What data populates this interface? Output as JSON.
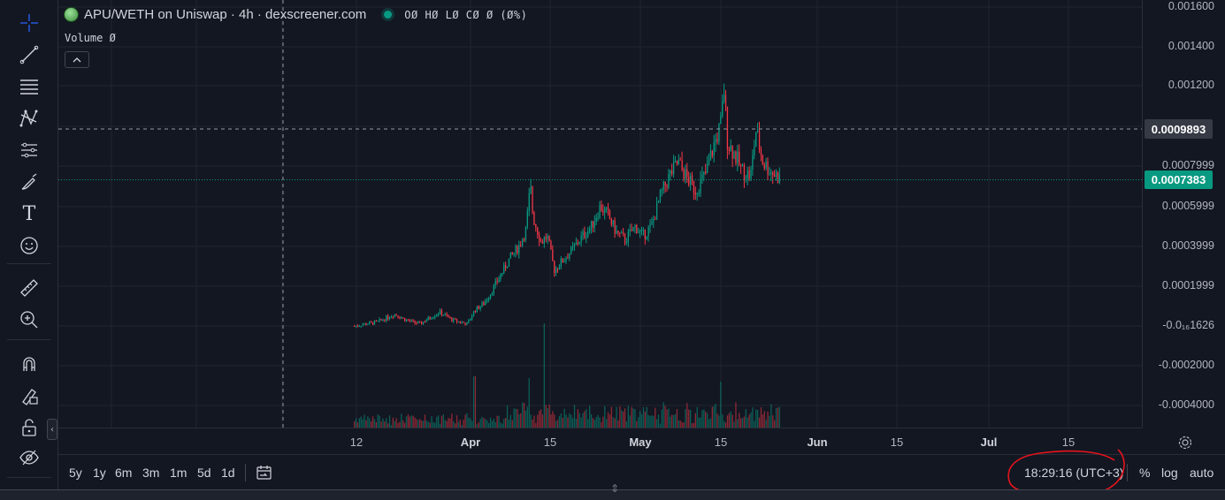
{
  "legend": {
    "title": "APU/WETH on Uniswap · 4h · dexscreener.com",
    "ohlc": "OØ HØ LØ CØ Ø (Ø%)",
    "volume": "Volume  Ø",
    "status_color": "#089981"
  },
  "toolbar": {
    "tools": [
      "crosshair-icon",
      "trend-line-icon",
      "horizontal-lines-icon",
      "pattern-icon",
      "prediction-icon",
      "brush-icon",
      "text-icon",
      "emoji-icon",
      "ruler-icon",
      "zoom-in-icon",
      "magnet-icon",
      "lock-drawing-icon",
      "unlock-icon",
      "eye-icon"
    ],
    "text_tool_glyph": "T"
  },
  "price_scale": {
    "labels": [
      "0.001600",
      "0.001400",
      "0.001200",
      "0.0007999",
      "0.0005999",
      "0.0003999",
      "0.0001999",
      "-0.0₁₆1626",
      "-0.0002000",
      "-0.0004000"
    ],
    "crosshair_price": "0.0009893",
    "current_price": "0.0007383"
  },
  "time_scale": {
    "labels": [
      {
        "text": "12",
        "bold": false
      },
      {
        "text": "Apr",
        "bold": true
      },
      {
        "text": "15",
        "bold": false
      },
      {
        "text": "May",
        "bold": true
      },
      {
        "text": "15",
        "bold": false
      },
      {
        "text": "Jun",
        "bold": true
      },
      {
        "text": "15",
        "bold": false
      },
      {
        "text": "Jul",
        "bold": true
      },
      {
        "text": "15",
        "bold": false
      }
    ]
  },
  "bottom_bar": {
    "ranges": [
      "5y",
      "1y",
      "6m",
      "3m",
      "1m",
      "5d",
      "1d"
    ],
    "clock": "18:29:16 (UTC+3)",
    "percent": "%",
    "log": "log",
    "auto": "auto"
  },
  "colors": {
    "up": "#089981",
    "down": "#f23645",
    "background": "#131722",
    "annotation": "#e8141c"
  },
  "chart_data": {
    "type": "candlestick",
    "series": [
      {
        "name": "APU/WETH",
        "x": [
          "Mar 09",
          "Mar 12",
          "Mar 16",
          "Mar 20",
          "Mar 23",
          "Mar 27",
          "Mar 30",
          "Apr 01",
          "Apr 04",
          "Apr 06",
          "Apr 08",
          "Apr 10",
          "Apr 11",
          "Apr 12",
          "Apr 14",
          "Apr 16",
          "Apr 18",
          "Apr 20",
          "Apr 21",
          "Apr 24",
          "Apr 26",
          "Apr 28",
          "May 01",
          "May 03",
          "May 05",
          "May 07",
          "May 09",
          "May 11",
          "May 13",
          "May 15",
          "May 16",
          "May 18",
          "May 19",
          "May 21",
          "May 22",
          "May 24"
        ],
        "close": [
          0.0,
          0.0,
          0.0001,
          5e-05,
          0.0001,
          3e-05,
          0.0001,
          0.0001,
          0.0002,
          0.0003,
          0.0004,
          0.0007,
          0.0006,
          0.0004,
          0.0003,
          0.0004,
          0.0005,
          0.00055,
          0.0006,
          0.0006,
          0.0005,
          0.00045,
          0.00055,
          0.00065,
          0.00075,
          0.0008,
          0.0007,
          0.0008,
          0.0009,
          0.0011,
          0.0009,
          0.0008,
          0.00075,
          0.00095,
          0.0008,
          0.0007383
        ]
      }
    ],
    "ylim": [
      -0.0004,
      0.0016
    ],
    "y_ticks": [
      "0.001600",
      "0.001400",
      "0.001200",
      "0.0007999",
      "0.0005999",
      "0.0003999",
      "0.0001999",
      "-0.0₁₆1626",
      "-0.0002000",
      "-0.0004000"
    ],
    "volume": "bars at bottom",
    "grid": true
  }
}
